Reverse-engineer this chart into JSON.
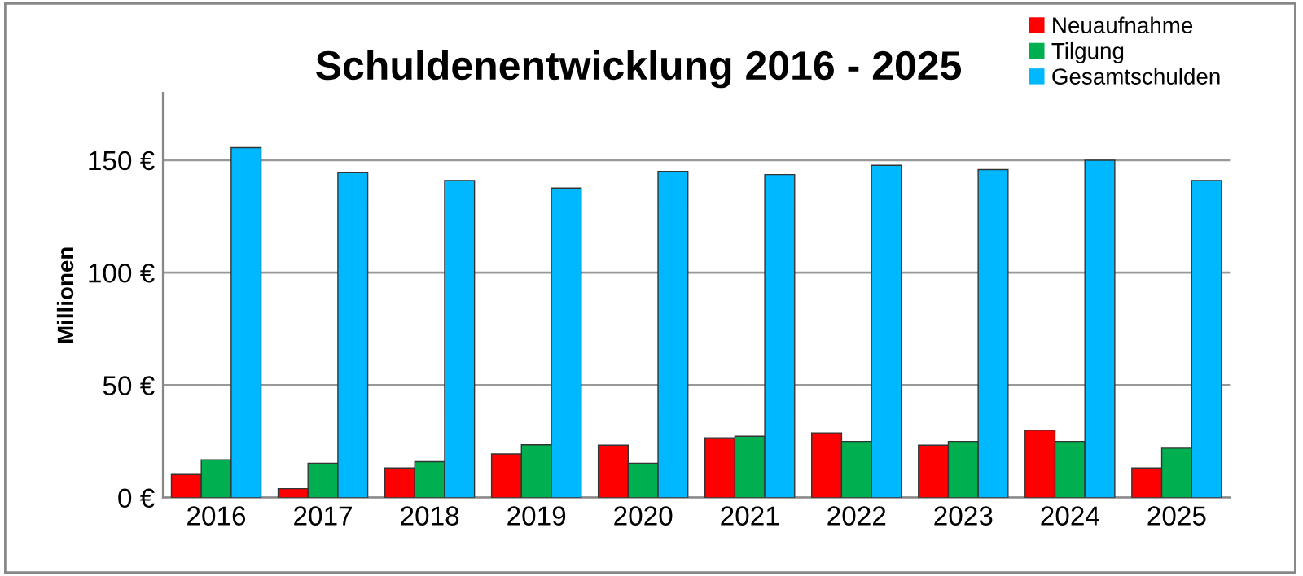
{
  "chart_data": {
    "type": "bar",
    "title": "Schuldenentwicklung 2016 - 2025",
    "ylabel": "Millionen",
    "categories": [
      "2016",
      "2017",
      "2018",
      "2019",
      "2020",
      "2021",
      "2022",
      "2023",
      "2024",
      "2025"
    ],
    "series": [
      {
        "name": "Neuaufnahme",
        "color": "#ff0000",
        "values": [
          10.3,
          4,
          13.2,
          19.4,
          23.3,
          26.6,
          28.8,
          23.3,
          30,
          13.2
        ]
      },
      {
        "name": "Tilgung",
        "color": "#00b050",
        "values": [
          16.8,
          15.3,
          16,
          23.5,
          15.3,
          27.3,
          25,
          25,
          25,
          22
        ]
      },
      {
        "name": "Gesamtschulden",
        "color": "#00b8ff",
        "values": [
          155.6,
          144.4,
          141,
          137.6,
          145,
          143.6,
          147.7,
          145.8,
          150,
          141
        ]
      }
    ],
    "ylim": [
      0,
      180
    ],
    "yticks": [
      {
        "value": 0,
        "label": "0 €"
      },
      {
        "value": 50,
        "label": "50 €"
      },
      {
        "value": 100,
        "label": "100 €"
      },
      {
        "value": 150,
        "label": "150 €"
      }
    ],
    "grid": "y",
    "legend": "top right"
  }
}
